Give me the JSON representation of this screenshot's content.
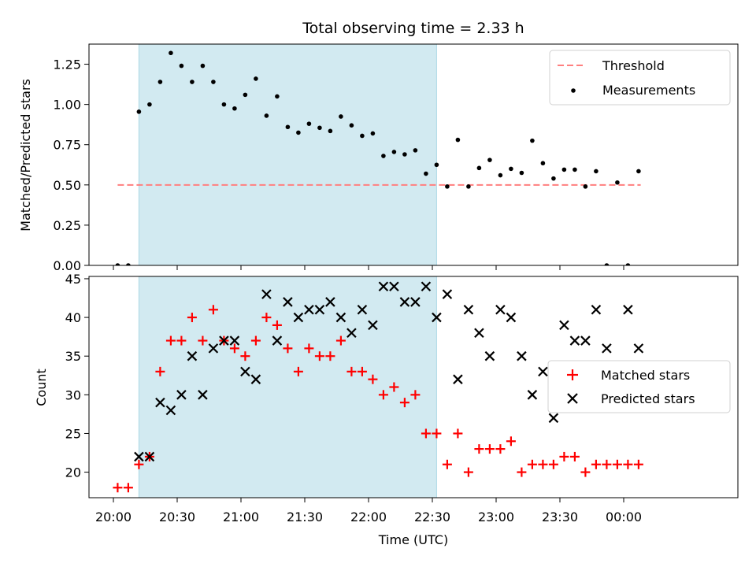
{
  "colors": {
    "shade": "#add8e6",
    "threshold": "#ff7f7f",
    "matched": "#ff0000",
    "predicted": "#000000",
    "measurement": "#000000"
  },
  "chart_data": {
    "title": "Total observing time = 2.33 h",
    "xlabel": "Time (UTC)",
    "x_ticks": [
      "20:00",
      "20:30",
      "21:00",
      "21:30",
      "22:00",
      "22:30",
      "23:00",
      "23:30",
      "00:00"
    ],
    "shaded_interval": [
      "20:12",
      "22:32"
    ],
    "panels": [
      {
        "type": "scatter",
        "ylabel": "Matched/Predicted stars",
        "ylim": [
          0,
          1.375
        ],
        "y_ticks": [
          "0.00",
          "0.25",
          "0.50",
          "0.75",
          "1.00",
          "1.25"
        ],
        "legend_position": "top-right",
        "threshold": {
          "name": "Threshold",
          "value": 0.5,
          "x_range": [
            "20:02",
            "22:32",
            "00:08"
          ]
        },
        "series": [
          {
            "name": "Measurements",
            "marker": "dot",
            "points": [
              [
                "20:02",
                0.0
              ],
              [
                "20:07",
                0.0
              ],
              [
                "20:12",
                0.955
              ],
              [
                "20:17",
                1.0
              ],
              [
                "20:22",
                1.14
              ],
              [
                "20:27",
                1.32
              ],
              [
                "20:32",
                1.24
              ],
              [
                "20:37",
                1.14
              ],
              [
                "20:42",
                1.24
              ],
              [
                "20:47",
                1.14
              ],
              [
                "20:52",
                1.0
              ],
              [
                "20:57",
                0.975
              ],
              [
                "21:02",
                1.06
              ],
              [
                "21:07",
                1.16
              ],
              [
                "21:12",
                0.93
              ],
              [
                "21:17",
                1.05
              ],
              [
                "21:22",
                0.86
              ],
              [
                "21:27",
                0.825
              ],
              [
                "21:32",
                0.88
              ],
              [
                "21:37",
                0.855
              ],
              [
                "21:42",
                0.835
              ],
              [
                "21:47",
                0.925
              ],
              [
                "21:52",
                0.87
              ],
              [
                "21:57",
                0.805
              ],
              [
                "22:02",
                0.82
              ],
              [
                "22:07",
                0.68
              ],
              [
                "22:12",
                0.705
              ],
              [
                "22:17",
                0.69
              ],
              [
                "22:22",
                0.715
              ],
              [
                "22:27",
                0.57
              ],
              [
                "22:32",
                0.625
              ],
              [
                "22:37",
                0.49
              ],
              [
                "22:42",
                0.78
              ],
              [
                "22:47",
                0.49
              ],
              [
                "22:52",
                0.605
              ],
              [
                "22:57",
                0.655
              ],
              [
                "23:02",
                0.56
              ],
              [
                "23:07",
                0.6
              ],
              [
                "23:12",
                0.575
              ],
              [
                "23:17",
                0.775
              ],
              [
                "23:22",
                0.635
              ],
              [
                "23:27",
                0.54
              ],
              [
                "23:32",
                0.595
              ],
              [
                "23:37",
                0.595
              ],
              [
                "23:42",
                0.49
              ],
              [
                "23:47",
                0.585
              ],
              [
                "23:52",
                0.0
              ],
              [
                "23:57",
                0.515
              ],
              [
                "00:02",
                0.0
              ],
              [
                "00:07",
                0.585
              ]
            ]
          }
        ]
      },
      {
        "type": "scatter",
        "ylabel": "Count",
        "ylim": [
          16.7,
          45.3
        ],
        "y_ticks": [
          "20",
          "25",
          "30",
          "35",
          "40",
          "45"
        ],
        "legend_position": "center-right",
        "series": [
          {
            "name": "Matched stars",
            "marker": "plus",
            "points": [
              [
                "20:02",
                18
              ],
              [
                "20:07",
                18
              ],
              [
                "20:12",
                21
              ],
              [
                "20:17",
                22
              ],
              [
                "20:22",
                33
              ],
              [
                "20:27",
                37
              ],
              [
                "20:32",
                37
              ],
              [
                "20:37",
                40
              ],
              [
                "20:42",
                37
              ],
              [
                "20:47",
                41
              ],
              [
                "20:52",
                37
              ],
              [
                "20:57",
                36
              ],
              [
                "21:02",
                35
              ],
              [
                "21:07",
                37
              ],
              [
                "21:12",
                40
              ],
              [
                "21:17",
                39
              ],
              [
                "21:22",
                36
              ],
              [
                "21:27",
                33
              ],
              [
                "21:32",
                36
              ],
              [
                "21:37",
                35
              ],
              [
                "21:42",
                35
              ],
              [
                "21:47",
                37
              ],
              [
                "21:52",
                33
              ],
              [
                "21:57",
                33
              ],
              [
                "22:02",
                32
              ],
              [
                "22:07",
                30
              ],
              [
                "22:12",
                31
              ],
              [
                "22:17",
                29
              ],
              [
                "22:22",
                30
              ],
              [
                "22:27",
                25
              ],
              [
                "22:32",
                25
              ],
              [
                "22:37",
                21
              ],
              [
                "22:42",
                25
              ],
              [
                "22:47",
                20
              ],
              [
                "22:52",
                23
              ],
              [
                "22:57",
                23
              ],
              [
                "23:02",
                23
              ],
              [
                "23:07",
                24
              ],
              [
                "23:12",
                20
              ],
              [
                "23:17",
                21
              ],
              [
                "23:22",
                21
              ],
              [
                "23:27",
                21
              ],
              [
                "23:32",
                22
              ],
              [
                "23:37",
                22
              ],
              [
                "23:42",
                20
              ],
              [
                "23:47",
                21
              ],
              [
                "23:52",
                21
              ],
              [
                "23:57",
                21
              ],
              [
                "00:02",
                21
              ],
              [
                "00:07",
                21
              ]
            ]
          },
          {
            "name": "Predicted stars",
            "marker": "x",
            "points": [
              [
                "20:12",
                22
              ],
              [
                "20:17",
                22
              ],
              [
                "20:22",
                29
              ],
              [
                "20:27",
                28
              ],
              [
                "20:32",
                30
              ],
              [
                "20:37",
                35
              ],
              [
                "20:42",
                30
              ],
              [
                "20:47",
                36
              ],
              [
                "20:52",
                37
              ],
              [
                "20:57",
                37
              ],
              [
                "21:02",
                33
              ],
              [
                "21:07",
                32
              ],
              [
                "21:12",
                43
              ],
              [
                "21:17",
                37
              ],
              [
                "21:22",
                42
              ],
              [
                "21:27",
                40
              ],
              [
                "21:32",
                41
              ],
              [
                "21:37",
                41
              ],
              [
                "21:42",
                42
              ],
              [
                "21:47",
                40
              ],
              [
                "21:52",
                38
              ],
              [
                "21:57",
                41
              ],
              [
                "22:02",
                39
              ],
              [
                "22:07",
                44
              ],
              [
                "22:12",
                44
              ],
              [
                "22:17",
                42
              ],
              [
                "22:22",
                42
              ],
              [
                "22:27",
                44
              ],
              [
                "22:32",
                40
              ],
              [
                "22:37",
                43
              ],
              [
                "22:42",
                32
              ],
              [
                "22:47",
                41
              ],
              [
                "22:52",
                38
              ],
              [
                "22:57",
                35
              ],
              [
                "23:02",
                41
              ],
              [
                "23:07",
                40
              ],
              [
                "23:12",
                35
              ],
              [
                "23:17",
                30
              ],
              [
                "23:22",
                33
              ],
              [
                "23:27",
                27
              ],
              [
                "23:32",
                39
              ],
              [
                "23:37",
                37
              ],
              [
                "23:42",
                37
              ],
              [
                "23:47",
                41
              ],
              [
                "23:52",
                36
              ],
              [
                "00:02",
                41
              ],
              [
                "00:07",
                36
              ]
            ]
          }
        ]
      }
    ]
  }
}
